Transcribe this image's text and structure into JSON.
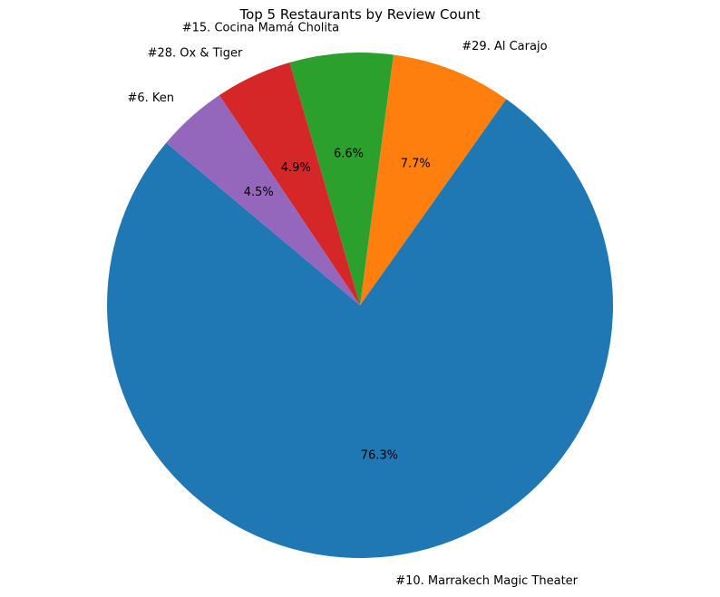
{
  "chart_data": {
    "type": "pie",
    "title": "Top 5 Restaurants by Review Count",
    "start_angle_deg": 140,
    "direction": "counterclockwise",
    "slices": [
      {
        "label": "#10. Marrakech Magic Theater",
        "pct": 76.3,
        "pct_label": "76.3%",
        "color": "#1f77b4"
      },
      {
        "label": "#29. Al Carajo",
        "pct": 7.7,
        "pct_label": "7.7%",
        "color": "#ff7f0e"
      },
      {
        "label": "#15. Cocina Mamá Cholita",
        "pct": 6.6,
        "pct_label": "6.6%",
        "color": "#2ca02c"
      },
      {
        "label": "#28. Ox & Tiger",
        "pct": 4.9,
        "pct_label": "4.9%",
        "color": "#d62728"
      },
      {
        "label": "#6. Ken",
        "pct": 4.5,
        "pct_label": "4.5%",
        "color": "#9467bd"
      }
    ],
    "legend": "none"
  }
}
